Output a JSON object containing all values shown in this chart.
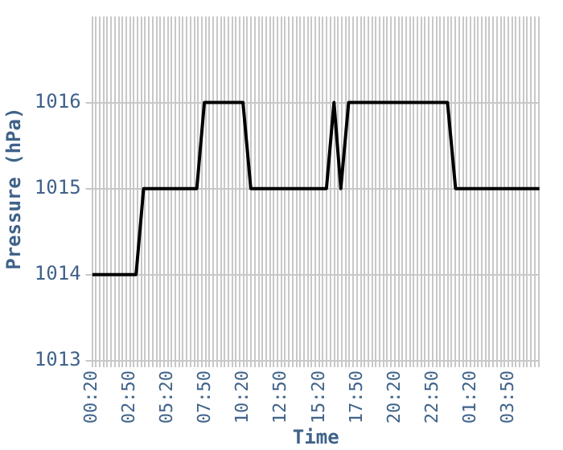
{
  "chart_data": {
    "type": "line",
    "xlabel": "Time",
    "ylabel": "Pressure (hPa)",
    "x": [
      "--01-01T00:20",
      "--01-01T03:14",
      "--01-01T03:44",
      "--01-01T07:15",
      "--01-01T07:45",
      "--01-01T10:18",
      "--01-01T10:49",
      "--01-01T15:49",
      "--01-01T16:19",
      "--01-01T16:46",
      "--01-01T17:17",
      "--01-01T23:49",
      "--01-02T00:21",
      "--01-02T05:54"
    ],
    "series": [
      {
        "color": "#000000",
        "values": [
          1014,
          1014,
          1015,
          1015,
          1016,
          1016,
          1015,
          1015,
          1016,
          1015,
          1016,
          1016,
          1015,
          1015
        ]
      }
    ],
    "xlim": [
      "--01-01T00:20",
      "--01-02T05:54"
    ],
    "ylim": [
      1013,
      1017
    ],
    "yticks": [
      1013,
      1014,
      1015,
      1016
    ],
    "xticks": [
      {
        "value": "--01-01T00:20",
        "label": "00:20"
      },
      {
        "value": "--01-01T00:35",
        "label": null
      },
      {
        "value": "--01-01T00:50",
        "label": null
      },
      {
        "value": "--01-01T01:05",
        "label": null
      },
      {
        "value": "--01-01T01:20",
        "label": null
      },
      {
        "value": "--01-01T01:35",
        "label": null
      },
      {
        "value": "--01-01T01:50",
        "label": null
      },
      {
        "value": "--01-01T02:05",
        "label": null
      },
      {
        "value": "--01-01T02:20",
        "label": null
      },
      {
        "value": "--01-01T02:35",
        "label": null
      },
      {
        "value": "--01-01T02:50",
        "label": "02:50"
      },
      {
        "value": "--01-01T03:05",
        "label": null
      },
      {
        "value": "--01-01T03:20",
        "label": null
      },
      {
        "value": "--01-01T03:35",
        "label": null
      },
      {
        "value": "--01-01T03:50",
        "label": null
      },
      {
        "value": "--01-01T04:05",
        "label": null
      },
      {
        "value": "--01-01T04:20",
        "label": null
      },
      {
        "value": "--01-01T04:35",
        "label": null
      },
      {
        "value": "--01-01T04:50",
        "label": null
      },
      {
        "value": "--01-01T05:05",
        "label": null
      },
      {
        "value": "--01-01T05:20",
        "label": "05:20"
      },
      {
        "value": "--01-01T05:35",
        "label": null
      },
      {
        "value": "--01-01T05:50",
        "label": null
      },
      {
        "value": "--01-01T06:05",
        "label": null
      },
      {
        "value": "--01-01T06:20",
        "label": null
      },
      {
        "value": "--01-01T06:35",
        "label": null
      },
      {
        "value": "--01-01T06:50",
        "label": null
      },
      {
        "value": "--01-01T07:05",
        "label": null
      },
      {
        "value": "--01-01T07:20",
        "label": null
      },
      {
        "value": "--01-01T07:35",
        "label": null
      },
      {
        "value": "--01-01T07:50",
        "label": "07:50"
      },
      {
        "value": "--01-01T08:05",
        "label": null
      },
      {
        "value": "--01-01T08:20",
        "label": null
      },
      {
        "value": "--01-01T08:35",
        "label": null
      },
      {
        "value": "--01-01T08:50",
        "label": null
      },
      {
        "value": "--01-01T09:05",
        "label": null
      },
      {
        "value": "--01-01T09:20",
        "label": null
      },
      {
        "value": "--01-01T09:35",
        "label": null
      },
      {
        "value": "--01-01T09:50",
        "label": null
      },
      {
        "value": "--01-01T10:05",
        "label": null
      },
      {
        "value": "--01-01T10:20",
        "label": "10:20"
      },
      {
        "value": "--01-01T10:35",
        "label": null
      },
      {
        "value": "--01-01T10:50",
        "label": null
      },
      {
        "value": "--01-01T11:05",
        "label": null
      },
      {
        "value": "--01-01T11:20",
        "label": null
      },
      {
        "value": "--01-01T11:35",
        "label": null
      },
      {
        "value": "--01-01T11:50",
        "label": null
      },
      {
        "value": "--01-01T12:05",
        "label": null
      },
      {
        "value": "--01-01T12:20",
        "label": null
      },
      {
        "value": "--01-01T12:35",
        "label": null
      },
      {
        "value": "--01-01T12:50",
        "label": "12:50"
      },
      {
        "value": "--01-01T13:05",
        "label": null
      },
      {
        "value": "--01-01T13:20",
        "label": null
      },
      {
        "value": "--01-01T13:35",
        "label": null
      },
      {
        "value": "--01-01T13:50",
        "label": null
      },
      {
        "value": "--01-01T14:05",
        "label": null
      },
      {
        "value": "--01-01T14:20",
        "label": null
      },
      {
        "value": "--01-01T14:35",
        "label": null
      },
      {
        "value": "--01-01T14:50",
        "label": null
      },
      {
        "value": "--01-01T15:05",
        "label": null
      },
      {
        "value": "--01-01T15:20",
        "label": "15:20"
      },
      {
        "value": "--01-01T15:35",
        "label": null
      },
      {
        "value": "--01-01T15:50",
        "label": null
      },
      {
        "value": "--01-01T16:05",
        "label": null
      },
      {
        "value": "--01-01T16:20",
        "label": null
      },
      {
        "value": "--01-01T16:35",
        "label": null
      },
      {
        "value": "--01-01T16:50",
        "label": null
      },
      {
        "value": "--01-01T17:05",
        "label": null
      },
      {
        "value": "--01-01T17:20",
        "label": null
      },
      {
        "value": "--01-01T17:35",
        "label": null
      },
      {
        "value": "--01-01T17:50",
        "label": "17:50"
      },
      {
        "value": "--01-01T18:05",
        "label": null
      },
      {
        "value": "--01-01T18:20",
        "label": null
      },
      {
        "value": "--01-01T18:35",
        "label": null
      },
      {
        "value": "--01-01T18:50",
        "label": null
      },
      {
        "value": "--01-01T19:05",
        "label": null
      },
      {
        "value": "--01-01T19:20",
        "label": null
      },
      {
        "value": "--01-01T19:35",
        "label": null
      },
      {
        "value": "--01-01T19:50",
        "label": null
      },
      {
        "value": "--01-01T20:05",
        "label": null
      },
      {
        "value": "--01-01T20:20",
        "label": "20:20"
      },
      {
        "value": "--01-01T20:35",
        "label": null
      },
      {
        "value": "--01-01T20:50",
        "label": null
      },
      {
        "value": "--01-01T21:05",
        "label": null
      },
      {
        "value": "--01-01T21:20",
        "label": null
      },
      {
        "value": "--01-01T21:35",
        "label": null
      },
      {
        "value": "--01-01T21:50",
        "label": null
      },
      {
        "value": "--01-01T22:05",
        "label": null
      },
      {
        "value": "--01-01T22:20",
        "label": null
      },
      {
        "value": "--01-01T22:35",
        "label": null
      },
      {
        "value": "--01-01T22:50",
        "label": "22:50"
      },
      {
        "value": "--01-01T23:05",
        "label": null
      },
      {
        "value": "--01-01T23:20",
        "label": null
      },
      {
        "value": "--01-01T23:35",
        "label": null
      },
      {
        "value": "--01-01T23:50",
        "label": null
      },
      {
        "value": "--01-02T00:05",
        "label": null
      },
      {
        "value": "--01-02T00:20",
        "label": null
      },
      {
        "value": "--01-02T00:35",
        "label": null
      },
      {
        "value": "--01-02T00:50",
        "label": null
      },
      {
        "value": "--01-02T01:05",
        "label": null
      },
      {
        "value": "--01-02T01:20",
        "label": "01:20"
      },
      {
        "value": "--01-02T01:35",
        "label": null
      },
      {
        "value": "--01-02T01:50",
        "label": null
      },
      {
        "value": "--01-02T02:05",
        "label": null
      },
      {
        "value": "--01-02T02:20",
        "label": null
      },
      {
        "value": "--01-02T02:35",
        "label": null
      },
      {
        "value": "--01-02T02:50",
        "label": null
      },
      {
        "value": "--01-02T03:05",
        "label": null
      },
      {
        "value": "--01-02T03:20",
        "label": null
      },
      {
        "value": "--01-02T03:35",
        "label": null
      },
      {
        "value": "--01-02T03:50",
        "label": "03:50"
      },
      {
        "value": "--01-02T04:05",
        "label": null
      },
      {
        "value": "--01-02T04:20",
        "label": null
      },
      {
        "value": "--01-02T04:35",
        "label": null
      },
      {
        "value": "--01-02T04:50",
        "label": null
      },
      {
        "value": "--01-02T05:05",
        "label": null
      },
      {
        "value": "--01-02T05:20",
        "label": null
      },
      {
        "value": "--01-02T05:35",
        "label": null
      },
      {
        "value": "--01-02T05:50",
        "label": null
      }
    ],
    "grid": true,
    "legend": false,
    "marker": "none",
    "line_style": "solid"
  }
}
